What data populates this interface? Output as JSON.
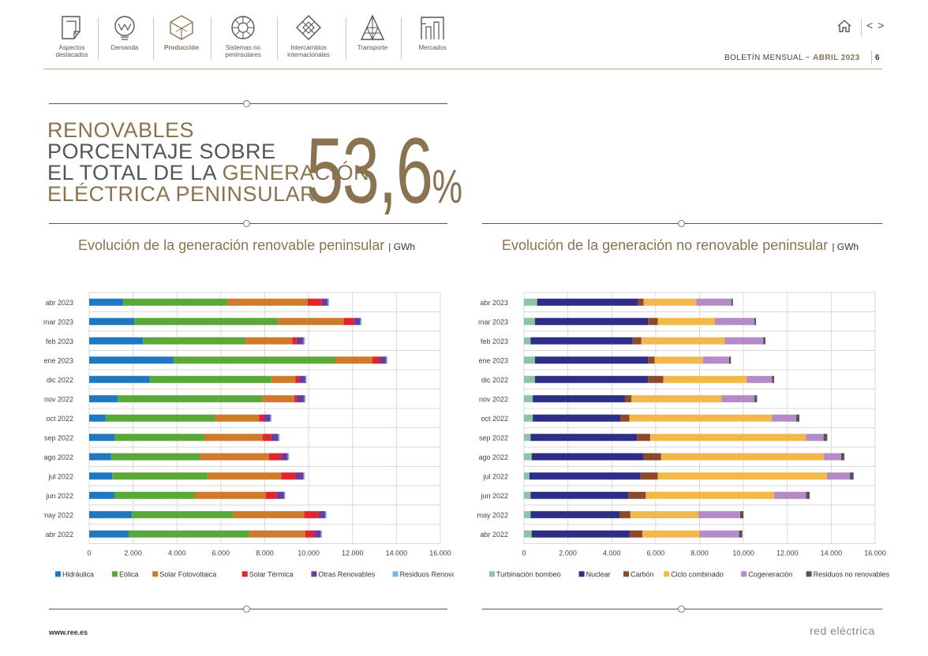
{
  "nav": [
    {
      "label": "Aspectos destacados",
      "icon": "document-icon"
    },
    {
      "label": "Demanda",
      "icon": "demand-bulb-icon"
    },
    {
      "label": "Producción",
      "icon": "production-cube-icon",
      "active": true
    },
    {
      "label": "Sistemas no peninsulares",
      "icon": "island-wheel-icon"
    },
    {
      "label": "Intercambios internacionales",
      "icon": "exchange-diamond-icon"
    },
    {
      "label": "Transporte",
      "icon": "tower-icon"
    },
    {
      "label": "Mercados",
      "icon": "market-building-icon"
    }
  ],
  "header": {
    "bulletin": "BOLETÍN MENSUAL",
    "separator": "~",
    "period": "ABRIL 2023",
    "page": "6",
    "prev_label": "<",
    "next_label": ">"
  },
  "headline": {
    "line1": "RENOVABLES",
    "line2": "PORCENTAJE SOBRE",
    "line3a": "EL TOTAL DE LA ",
    "line3b": "GENERACIÓN",
    "line4": "ELÉCTRICA PENINSULAR",
    "value": "53,6",
    "unit": "%"
  },
  "footer": {
    "url": "www.ree.es",
    "brand": "red eléctrica"
  },
  "chart_data": [
    {
      "type": "bar",
      "orientation": "horizontal",
      "stacked": true,
      "title": "Evolución de la generación renovable peninsular",
      "unit": "GWh",
      "xlim": [
        0,
        16000
      ],
      "ticks": [
        "0",
        "2.000",
        "4.000",
        "6.000",
        "8.000",
        "10.000",
        "12.000",
        "14.000",
        "16.000"
      ],
      "categories": [
        "abr 2023",
        "mar 2023",
        "feb 2023",
        "ene 2023",
        "dic 2022",
        "nov 2022",
        "oct 2022",
        "sep 2022",
        "ago 2022",
        "jul 2022",
        "jun 2022",
        "may 2022",
        "abr 2022"
      ],
      "series": [
        {
          "name": "Hidráulica",
          "color": "#1f78c1",
          "values": [
            1550,
            2050,
            2450,
            3850,
            2750,
            1300,
            750,
            1150,
            1000,
            1050,
            1150,
            1950,
            1800
          ]
        },
        {
          "name": "Eólica",
          "color": "#5aa83a",
          "values": [
            4750,
            6550,
            4650,
            7350,
            5550,
            6600,
            5000,
            4100,
            4050,
            4350,
            3650,
            4600,
            5500
          ]
        },
        {
          "name": "Solar Fotovoltaica",
          "color": "#d07a2b",
          "values": [
            3650,
            3000,
            2150,
            1700,
            1100,
            1450,
            2000,
            2650,
            3150,
            3350,
            3250,
            3250,
            2550
          ]
        },
        {
          "name": "Solar Térmica",
          "color": "#e0252f",
          "values": [
            650,
            450,
            200,
            350,
            150,
            100,
            200,
            400,
            550,
            650,
            500,
            650,
            400
          ]
        },
        {
          "name": "Otras Renovables",
          "color": "#6a3d9a",
          "values": [
            270,
            300,
            320,
            280,
            300,
            350,
            300,
            320,
            300,
            360,
            330,
            310,
            300
          ]
        },
        {
          "name": "Residuos Renovables",
          "color": "#7ab7e8",
          "values": [
            60,
            60,
            60,
            60,
            60,
            60,
            60,
            60,
            60,
            60,
            60,
            60,
            60
          ]
        }
      ],
      "legend": "bottom"
    },
    {
      "type": "bar",
      "orientation": "horizontal",
      "stacked": true,
      "title": "Evolución de la generación no renovable peninsular",
      "unit": "GWh",
      "xlim": [
        0,
        16000
      ],
      "ticks": [
        "0",
        "2.000",
        "4.000",
        "6.000",
        "8.000",
        "10.000",
        "12.000",
        "14.000",
        "16.000"
      ],
      "categories": [
        "abr 2023",
        "mar 2023",
        "feb 2023",
        "ene 2023",
        "dic 2022",
        "nov 2022",
        "oct 2022",
        "sep 2022",
        "ago 2022",
        "jul 2022",
        "jun 2022",
        "may 2022",
        "abr 2022"
      ],
      "series": [
        {
          "name": "Turbinación bombeo",
          "color": "#8dc4a5",
          "values": [
            600,
            500,
            300,
            500,
            500,
            400,
            400,
            300,
            350,
            250,
            300,
            300,
            350
          ]
        },
        {
          "name": "Nuclear",
          "color": "#2e2e86",
          "values": [
            4600,
            5150,
            4650,
            5150,
            5150,
            4200,
            4000,
            4850,
            5100,
            5050,
            4450,
            4050,
            4450
          ]
        },
        {
          "name": "Carbón",
          "color": "#8b4a2b",
          "values": [
            250,
            450,
            400,
            300,
            700,
            300,
            400,
            600,
            800,
            800,
            800,
            500,
            600
          ]
        },
        {
          "name": "Ciclo combinado",
          "color": "#f2b84b",
          "values": [
            2400,
            2600,
            3800,
            2200,
            3800,
            4100,
            6500,
            7100,
            7400,
            7700,
            5850,
            3100,
            2600
          ]
        },
        {
          "name": "Cogeneración",
          "color": "#b38cc7",
          "values": [
            1600,
            1800,
            1750,
            1200,
            1150,
            1500,
            1100,
            800,
            800,
            1050,
            1450,
            1900,
            1800
          ]
        },
        {
          "name": "Residuos no renovables",
          "color": "#555555",
          "values": [
            70,
            70,
            100,
            80,
            100,
            120,
            150,
            170,
            150,
            170,
            170,
            150,
            150
          ]
        }
      ],
      "legend": "bottom"
    }
  ]
}
